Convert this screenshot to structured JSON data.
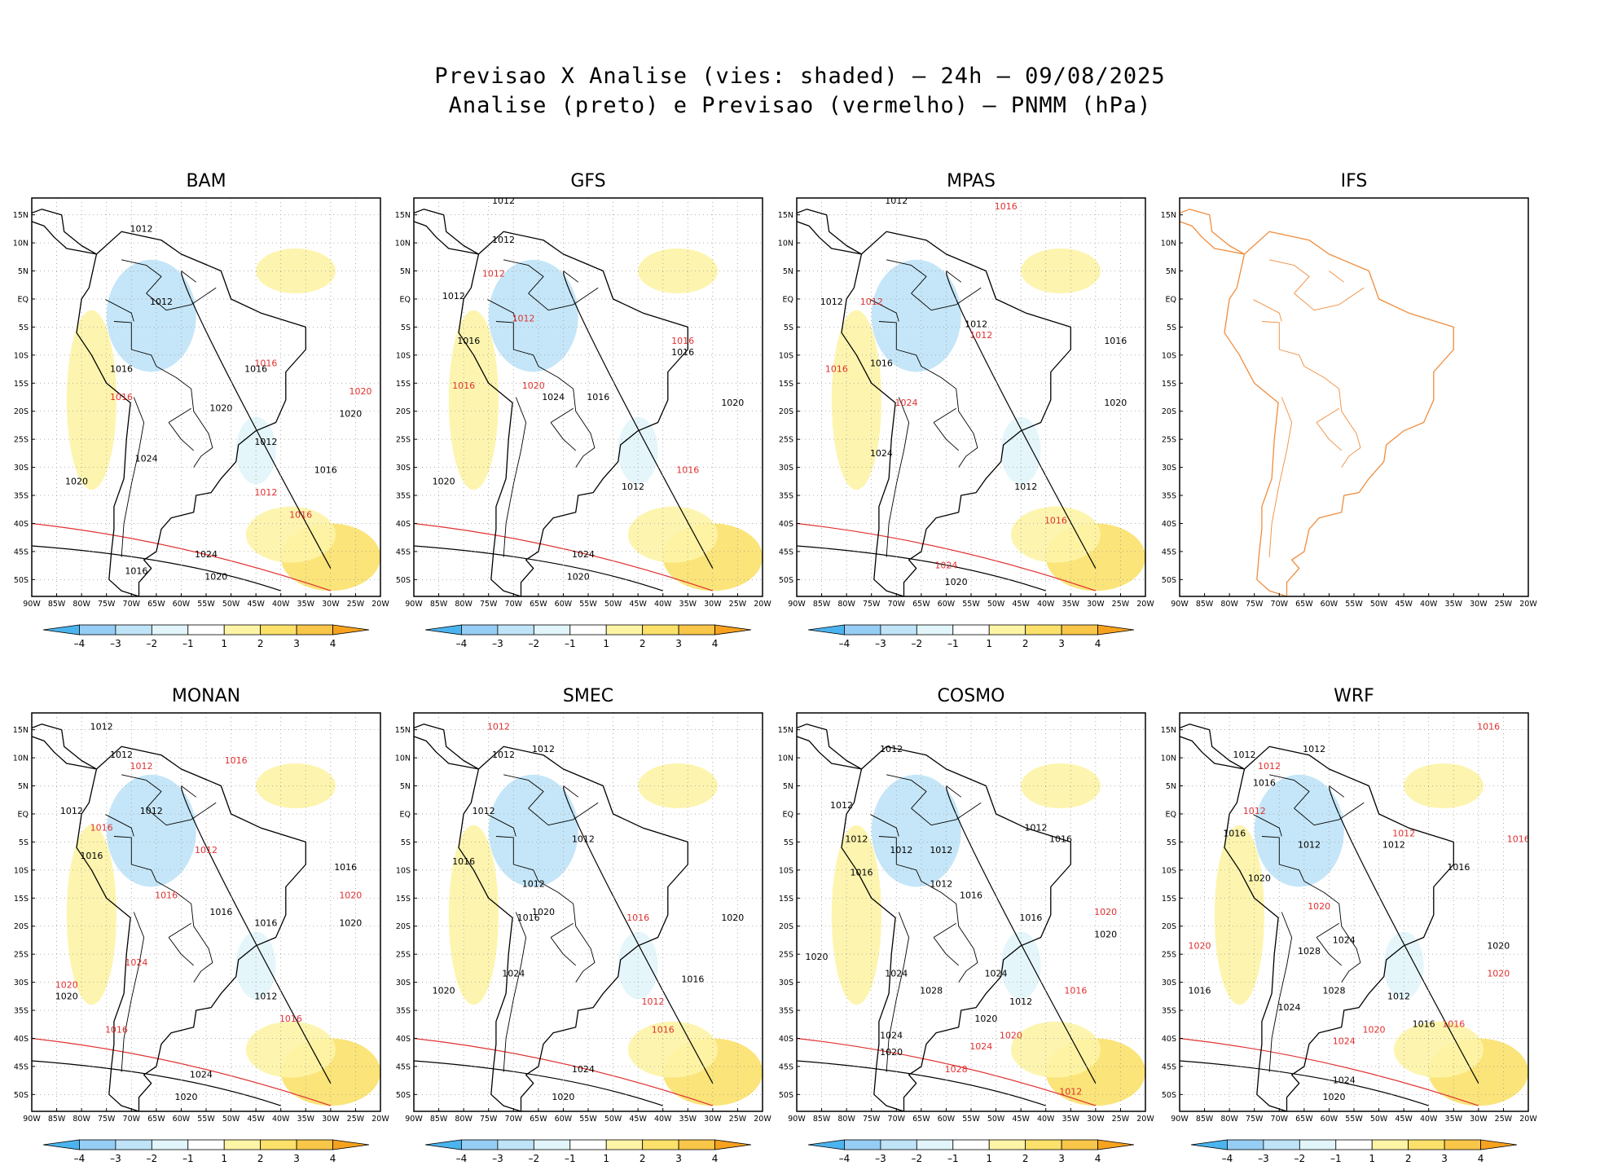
{
  "figure": {
    "title_line1": "Previsao X Analise (vies: shaded) – 24h – 09/08/2025",
    "title_line2": "Analise (preto) e Previsao (vermelho) – PNMM (hPa)"
  },
  "axes": {
    "lon_labels": [
      "90W",
      "85W",
      "80W",
      "75W",
      "70W",
      "65W",
      "60W",
      "55W",
      "50W",
      "45W",
      "40W",
      "35W",
      "30W",
      "25W",
      "20W"
    ],
    "lat_labels": [
      "15N",
      "10N",
      "5N",
      "EQ",
      "5S",
      "10S",
      "15S",
      "20S",
      "25S",
      "30S",
      "35S",
      "40S",
      "45S",
      "50S"
    ],
    "lon_range": [
      -90,
      -20
    ],
    "lat_range": [
      -53,
      18
    ]
  },
  "colorbar": {
    "labels": [
      "–4",
      "–3",
      "–2",
      "–1",
      "1",
      "2",
      "3",
      "4"
    ],
    "colors": [
      "#4bb4ee",
      "#96cdf5",
      "#bfe3f7",
      "#e1f5fa",
      "#ffffff",
      "#fdf4a6",
      "#fbe16a",
      "#f8c648",
      "#f7a21e"
    ]
  },
  "panels": [
    {
      "name": "BAM",
      "title": "BAM",
      "has_data": true,
      "isobars": [
        {
          "text": "1012",
          "color": "#000000",
          "lon": -68,
          "lat": 12
        },
        {
          "text": "1012",
          "color": "#000000",
          "lon": -64,
          "lat": -1
        },
        {
          "text": "1016",
          "color": "#000000",
          "lon": -72,
          "lat": -13
        },
        {
          "text": "1016",
          "color": "#e03030",
          "lon": -72,
          "lat": -18
        },
        {
          "text": "1020",
          "color": "#000000",
          "lon": -52,
          "lat": -20
        },
        {
          "text": "1024",
          "color": "#000000",
          "lon": -67,
          "lat": -29
        },
        {
          "text": "1020",
          "color": "#000000",
          "lon": -81,
          "lat": -33
        },
        {
          "text": "1016",
          "color": "#000000",
          "lon": -31,
          "lat": -31
        },
        {
          "text": "1020",
          "color": "#000000",
          "lon": -26,
          "lat": -21
        },
        {
          "text": "1020",
          "color": "#e03030",
          "lon": -24,
          "lat": -17
        },
        {
          "text": "1016",
          "color": "#e03030",
          "lon": -36,
          "lat": -39
        },
        {
          "text": "1016",
          "color": "#e03030",
          "lon": -43,
          "lat": -12
        },
        {
          "text": "1012",
          "color": "#000000",
          "lon": -43,
          "lat": -26
        },
        {
          "text": "1012",
          "color": "#e03030",
          "lon": -43,
          "lat": -35
        },
        {
          "text": "1024",
          "color": "#000000",
          "lon": -55,
          "lat": -46
        },
        {
          "text": "1020",
          "color": "#000000",
          "lon": -53,
          "lat": -50
        },
        {
          "text": "1016",
          "color": "#000000",
          "lon": -69,
          "lat": -49
        },
        {
          "text": "1016",
          "color": "#000000",
          "lon": -45,
          "lat": -13
        }
      ]
    },
    {
      "name": "GFS",
      "title": "GFS",
      "has_data": true,
      "isobars": [
        {
          "text": "1012",
          "color": "#000000",
          "lon": -72,
          "lat": 17
        },
        {
          "text": "1012",
          "color": "#000000",
          "lon": -72,
          "lat": 10
        },
        {
          "text": "1012",
          "color": "#000000",
          "lon": -82,
          "lat": 0
        },
        {
          "text": "1012",
          "color": "#e03030",
          "lon": -74,
          "lat": 4
        },
        {
          "text": "1012",
          "color": "#e03030",
          "lon": -68,
          "lat": -4
        },
        {
          "text": "1016",
          "color": "#000000",
          "lon": -79,
          "lat": -8
        },
        {
          "text": "1016",
          "color": "#e03030",
          "lon": -80,
          "lat": -16
        },
        {
          "text": "1020",
          "color": "#e03030",
          "lon": -66,
          "lat": -16
        },
        {
          "text": "1024",
          "color": "#000000",
          "lon": -62,
          "lat": -18
        },
        {
          "text": "1016",
          "color": "#000000",
          "lon": -53,
          "lat": -18
        },
        {
          "text": "1020",
          "color": "#000000",
          "lon": -84,
          "lat": -33
        },
        {
          "text": "1020",
          "color": "#000000",
          "lon": -26,
          "lat": -19
        },
        {
          "text": "1016",
          "color": "#000000",
          "lon": -36,
          "lat": -10
        },
        {
          "text": "1016",
          "color": "#e03030",
          "lon": -36,
          "lat": -8
        },
        {
          "text": "1012",
          "color": "#000000",
          "lon": -46,
          "lat": -34
        },
        {
          "text": "1016",
          "color": "#e03030",
          "lon": -35,
          "lat": -31
        },
        {
          "text": "1024",
          "color": "#000000",
          "lon": -56,
          "lat": -46
        },
        {
          "text": "1020",
          "color": "#000000",
          "lon": -57,
          "lat": -50
        }
      ]
    },
    {
      "name": "MPAS",
      "title": "MPAS",
      "has_data": true,
      "isobars": [
        {
          "text": "1012",
          "color": "#000000",
          "lon": -70,
          "lat": 17
        },
        {
          "text": "1016",
          "color": "#e03030",
          "lon": -48,
          "lat": 16
        },
        {
          "text": "1012",
          "color": "#000000",
          "lon": -83,
          "lat": -1
        },
        {
          "text": "1012",
          "color": "#e03030",
          "lon": -75,
          "lat": -1
        },
        {
          "text": "1012",
          "color": "#000000",
          "lon": -54,
          "lat": -5
        },
        {
          "text": "1012",
          "color": "#e03030",
          "lon": -53,
          "lat": -7
        },
        {
          "text": "1016",
          "color": "#000000",
          "lon": -26,
          "lat": -8
        },
        {
          "text": "1016",
          "color": "#e03030",
          "lon": -82,
          "lat": -13
        },
        {
          "text": "1016",
          "color": "#000000",
          "lon": -73,
          "lat": -12
        },
        {
          "text": "1024",
          "color": "#e03030",
          "lon": -68,
          "lat": -19
        },
        {
          "text": "1020",
          "color": "#000000",
          "lon": -26,
          "lat": -19
        },
        {
          "text": "1024",
          "color": "#000000",
          "lon": -73,
          "lat": -28
        },
        {
          "text": "1012",
          "color": "#000000",
          "lon": -44,
          "lat": -34
        },
        {
          "text": "1016",
          "color": "#e03030",
          "lon": -38,
          "lat": -40
        },
        {
          "text": "1024",
          "color": "#e03030",
          "lon": -60,
          "lat": -48
        },
        {
          "text": "1020",
          "color": "#000000",
          "lon": -58,
          "lat": -51
        }
      ]
    },
    {
      "name": "IFS",
      "title": "IFS",
      "has_data": false,
      "isobars": []
    },
    {
      "name": "MONAN",
      "title": "MONAN",
      "has_data": true,
      "isobars": [
        {
          "text": "1012",
          "color": "#000000",
          "lon": -76,
          "lat": 15
        },
        {
          "text": "1012",
          "color": "#000000",
          "lon": -72,
          "lat": 10
        },
        {
          "text": "1012",
          "color": "#e03030",
          "lon": -68,
          "lat": 8
        },
        {
          "text": "1016",
          "color": "#e03030",
          "lon": -49,
          "lat": 9
        },
        {
          "text": "1012",
          "color": "#000000",
          "lon": -82,
          "lat": 0
        },
        {
          "text": "1012",
          "color": "#000000",
          "lon": -66,
          "lat": 0
        },
        {
          "text": "1016",
          "color": "#e03030",
          "lon": -76,
          "lat": -3
        },
        {
          "text": "1016",
          "color": "#000000",
          "lon": -78,
          "lat": -8
        },
        {
          "text": "1012",
          "color": "#e03030",
          "lon": -55,
          "lat": -7
        },
        {
          "text": "1016",
          "color": "#000000",
          "lon": -27,
          "lat": -10
        },
        {
          "text": "1016",
          "color": "#e03030",
          "lon": -63,
          "lat": -15
        },
        {
          "text": "1016",
          "color": "#000000",
          "lon": -52,
          "lat": -18
        },
        {
          "text": "1020",
          "color": "#e03030",
          "lon": -26,
          "lat": -15
        },
        {
          "text": "1020",
          "color": "#000000",
          "lon": -26,
          "lat": -20
        },
        {
          "text": "1016",
          "color": "#000000",
          "lon": -43,
          "lat": -20
        },
        {
          "text": "1024",
          "color": "#e03030",
          "lon": -69,
          "lat": -27
        },
        {
          "text": "1020",
          "color": "#e03030",
          "lon": -83,
          "lat": -31
        },
        {
          "text": "1020",
          "color": "#000000",
          "lon": -83,
          "lat": -33
        },
        {
          "text": "1012",
          "color": "#000000",
          "lon": -43,
          "lat": -33
        },
        {
          "text": "1016",
          "color": "#e03030",
          "lon": -38,
          "lat": -37
        },
        {
          "text": "1016",
          "color": "#e03030",
          "lon": -73,
          "lat": -39
        },
        {
          "text": "1024",
          "color": "#000000",
          "lon": -56,
          "lat": -47
        },
        {
          "text": "1020",
          "color": "#000000",
          "lon": -59,
          "lat": -51
        }
      ]
    },
    {
      "name": "SMEC",
      "title": "SMEC",
      "has_data": true,
      "isobars": [
        {
          "text": "1012",
          "color": "#e03030",
          "lon": -73,
          "lat": 15
        },
        {
          "text": "1012",
          "color": "#000000",
          "lon": -64,
          "lat": 11
        },
        {
          "text": "1012",
          "color": "#000000",
          "lon": -72,
          "lat": 10
        },
        {
          "text": "1012",
          "color": "#000000",
          "lon": -76,
          "lat": 0
        },
        {
          "text": "1016",
          "color": "#000000",
          "lon": -80,
          "lat": -9
        },
        {
          "text": "1012",
          "color": "#000000",
          "lon": -56,
          "lat": -5
        },
        {
          "text": "1012",
          "color": "#000000",
          "lon": -66,
          "lat": -13
        },
        {
          "text": "1020",
          "color": "#000000",
          "lon": -64,
          "lat": -18
        },
        {
          "text": "1016",
          "color": "#e03030",
          "lon": -45,
          "lat": -19
        },
        {
          "text": "1016",
          "color": "#000000",
          "lon": -67,
          "lat": -19
        },
        {
          "text": "1020",
          "color": "#000000",
          "lon": -26,
          "lat": -19
        },
        {
          "text": "1016",
          "color": "#000000",
          "lon": -34,
          "lat": -30
        },
        {
          "text": "1020",
          "color": "#000000",
          "lon": -84,
          "lat": -32
        },
        {
          "text": "1024",
          "color": "#000000",
          "lon": -70,
          "lat": -29
        },
        {
          "text": "1012",
          "color": "#e03030",
          "lon": -42,
          "lat": -34
        },
        {
          "text": "1016",
          "color": "#e03030",
          "lon": -40,
          "lat": -39
        },
        {
          "text": "1024",
          "color": "#000000",
          "lon": -56,
          "lat": -46
        },
        {
          "text": "1020",
          "color": "#000000",
          "lon": -60,
          "lat": -51
        }
      ]
    },
    {
      "name": "COSMO",
      "title": "COSMO",
      "has_data": true,
      "isobars": [
        {
          "text": "1012",
          "color": "#000000",
          "lon": -71,
          "lat": 11
        },
        {
          "text": "1012",
          "color": "#000000",
          "lon": -81,
          "lat": 1
        },
        {
          "text": "1012",
          "color": "#000000",
          "lon": -78,
          "lat": -5
        },
        {
          "text": "1012",
          "color": "#000000",
          "lon": -69,
          "lat": -7
        },
        {
          "text": "1012",
          "color": "#000000",
          "lon": -61,
          "lat": -7
        },
        {
          "text": "1016",
          "color": "#000000",
          "lon": -77,
          "lat": -11
        },
        {
          "text": "1012",
          "color": "#000000",
          "lon": -61,
          "lat": -13
        },
        {
          "text": "1016",
          "color": "#000000",
          "lon": -55,
          "lat": -15
        },
        {
          "text": "1012",
          "color": "#000000",
          "lon": -42,
          "lat": -3
        },
        {
          "text": "1016",
          "color": "#000000",
          "lon": -37,
          "lat": -5
        },
        {
          "text": "1016",
          "color": "#000000",
          "lon": -43,
          "lat": -19
        },
        {
          "text": "1020",
          "color": "#e03030",
          "lon": -28,
          "lat": -18
        },
        {
          "text": "1020",
          "color": "#000000",
          "lon": -28,
          "lat": -22
        },
        {
          "text": "1020",
          "color": "#000000",
          "lon": -86,
          "lat": -26
        },
        {
          "text": "1024",
          "color": "#000000",
          "lon": -70,
          "lat": -29
        },
        {
          "text": "1028",
          "color": "#000000",
          "lon": -63,
          "lat": -32
        },
        {
          "text": "1024",
          "color": "#000000",
          "lon": -50,
          "lat": -29
        },
        {
          "text": "1012",
          "color": "#000000",
          "lon": -45,
          "lat": -34
        },
        {
          "text": "1016",
          "color": "#e03030",
          "lon": -34,
          "lat": -32
        },
        {
          "text": "1020",
          "color": "#000000",
          "lon": -52,
          "lat": -37
        },
        {
          "text": "1020",
          "color": "#e03030",
          "lon": -47,
          "lat": -40
        },
        {
          "text": "1024",
          "color": "#e03030",
          "lon": -53,
          "lat": -42
        },
        {
          "text": "1028",
          "color": "#e03030",
          "lon": -58,
          "lat": -46
        },
        {
          "text": "1024",
          "color": "#000000",
          "lon": -71,
          "lat": -40
        },
        {
          "text": "1012",
          "color": "#e03030",
          "lon": -35,
          "lat": -50
        },
        {
          "text": "1020",
          "color": "#000000",
          "lon": -71,
          "lat": -43
        }
      ]
    },
    {
      "name": "WRF",
      "title": "WRF",
      "has_data": true,
      "isobars": [
        {
          "text": "1016",
          "color": "#e03030",
          "lon": -28,
          "lat": 15
        },
        {
          "text": "1012",
          "color": "#000000",
          "lon": -63,
          "lat": 11
        },
        {
          "text": "1012",
          "color": "#000000",
          "lon": -77,
          "lat": 10
        },
        {
          "text": "1012",
          "color": "#e03030",
          "lon": -72,
          "lat": 8
        },
        {
          "text": "1016",
          "color": "#000000",
          "lon": -73,
          "lat": 5
        },
        {
          "text": "1012",
          "color": "#e03030",
          "lon": -75,
          "lat": 0
        },
        {
          "text": "1016",
          "color": "#000000",
          "lon": -79,
          "lat": -4
        },
        {
          "text": "1012",
          "color": "#000000",
          "lon": -64,
          "lat": -6
        },
        {
          "text": "1012",
          "color": "#000000",
          "lon": -47,
          "lat": -6
        },
        {
          "text": "1012",
          "color": "#e03030",
          "lon": -45,
          "lat": -4
        },
        {
          "text": "1016",
          "color": "#000000",
          "lon": -34,
          "lat": -10
        },
        {
          "text": "1016",
          "color": "#e03030",
          "lon": -22,
          "lat": -5
        },
        {
          "text": "1020",
          "color": "#000000",
          "lon": -74,
          "lat": -12
        },
        {
          "text": "1020",
          "color": "#e03030",
          "lon": -62,
          "lat": -17
        },
        {
          "text": "1024",
          "color": "#000000",
          "lon": -57,
          "lat": -23
        },
        {
          "text": "1028",
          "color": "#000000",
          "lon": -64,
          "lat": -25
        },
        {
          "text": "1020",
          "color": "#e03030",
          "lon": -86,
          "lat": -24
        },
        {
          "text": "1016",
          "color": "#000000",
          "lon": -86,
          "lat": -32
        },
        {
          "text": "1020",
          "color": "#000000",
          "lon": -26,
          "lat": -24
        },
        {
          "text": "1020",
          "color": "#e03030",
          "lon": -26,
          "lat": -29
        },
        {
          "text": "1028",
          "color": "#000000",
          "lon": -59,
          "lat": -32
        },
        {
          "text": "1024",
          "color": "#000000",
          "lon": -68,
          "lat": -35
        },
        {
          "text": "1012",
          "color": "#000000",
          "lon": -46,
          "lat": -33
        },
        {
          "text": "1016",
          "color": "#000000",
          "lon": -41,
          "lat": -38
        },
        {
          "text": "1020",
          "color": "#e03030",
          "lon": -51,
          "lat": -39
        },
        {
          "text": "1016",
          "color": "#e03030",
          "lon": -35,
          "lat": -38
        },
        {
          "text": "1024",
          "color": "#e03030",
          "lon": -57,
          "lat": -41
        },
        {
          "text": "1024",
          "color": "#000000",
          "lon": -57,
          "lat": -48
        },
        {
          "text": "1020",
          "color": "#000000",
          "lon": -59,
          "lat": -51
        }
      ]
    }
  ]
}
